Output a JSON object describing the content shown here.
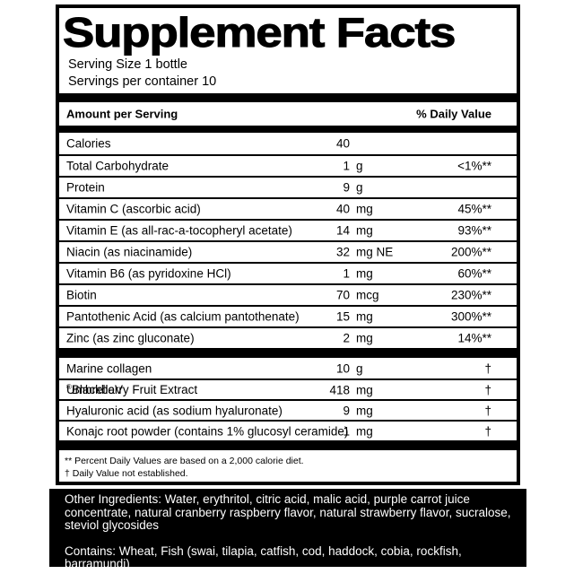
{
  "colors": {
    "text": "#000000",
    "panel_bg": "#000000",
    "panel_text": "#ffffff"
  },
  "label": {
    "title": "Supplement Facts",
    "serving_size": "Serving Size 1 bottle",
    "servings_per_container": "Servings per container 10",
    "column_headers": {
      "left": "Amount per Serving",
      "right": "% Daily Value"
    },
    "rows": [
      {
        "name": "Calories",
        "value": "40",
        "unit": "",
        "dv": ""
      },
      {
        "name": "Total Carbohydrate",
        "value": "1",
        "unit": "g",
        "dv": "<1%**"
      },
      {
        "name": "Protein",
        "value": "9",
        "unit": "g",
        "dv": ""
      },
      {
        "name": "Vitamin C (ascorbic acid)",
        "value": "40",
        "unit": "mg",
        "dv": "45%**"
      },
      {
        "name": "Vitamin E (as all-rac-a-tocopheryl acetate)",
        "value": "14",
        "unit": "mg",
        "dv": "93%**"
      },
      {
        "name": "Niacin (as niacinamide)",
        "value": "32",
        "unit": "mg NE",
        "dv": "200%**"
      },
      {
        "name": "Vitamin B6 (as pyridoxine HCl)",
        "value": "1",
        "unit": "mg",
        "dv": "60%**"
      },
      {
        "name": "Biotin",
        "value": "70",
        "unit": "mcg",
        "dv": "230%**"
      },
      {
        "name": "Pantothenic Acid (as calcium pantothenate)",
        "value": "15",
        "unit": "mg",
        "dv": "300%**"
      },
      {
        "name": "Zinc (as zinc gluconate)",
        "value": "2",
        "unit": "mg",
        "dv": "14%**"
      }
    ],
    "rows2": [
      {
        "name": "Marine collagen",
        "value": "10",
        "unit": "g",
        "dv": "†"
      },
      {
        "name_pre": "UmbrellaV",
        "reg": "®",
        "name_post": " Blackberry Fruit Extract",
        "value": "418",
        "unit": "mg",
        "dv": "†"
      },
      {
        "name": "Hyaluronic acid (as sodium hyaluronate)",
        "value": "9",
        "unit": "mg",
        "dv": "†"
      },
      {
        "name": "Konajc root powder (contains 1% glucosyl ceramide)",
        "value": "1",
        "unit": "mg",
        "dv": "†"
      }
    ],
    "footnotes": {
      "percent": "** Percent Daily Values are based on a 2,000 calorie diet.",
      "dagger": "† Daily Value not established."
    }
  },
  "bottom_panel": {
    "other_ingredients": "Other Ingredients: Water, erythritol, citric acid, malic acid, purple carrot juice concentrate, natural cranberry raspberry flavor, natural strawberry flavor, sucralose, steviol glycosides",
    "contains": "Contains: Wheat, Fish (swai, tilapia, catfish, cod, haddock, cobia, rockfish, barramundi)"
  }
}
